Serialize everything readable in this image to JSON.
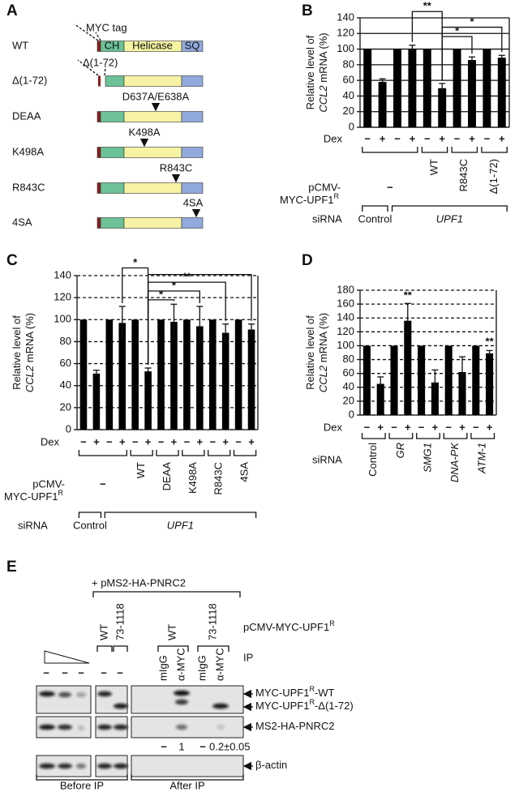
{
  "panel_a": {
    "label": "A",
    "myc_tag": "MYC tag",
    "domains": [
      "CH",
      "Helicase",
      "SQ"
    ],
    "rows": [
      {
        "name": "WT"
      },
      {
        "name": "Δ(1-72)",
        "note": "Δ(1-72)"
      },
      {
        "name": "DEAA",
        "mutation": "D637A/E638A"
      },
      {
        "name": "K498A",
        "mutation": "K498A"
      },
      {
        "name": "R843C",
        "mutation": "R843C"
      },
      {
        "name": "4SA",
        "mutation": "4SA"
      }
    ]
  },
  "chart_data": [
    {
      "type": "bar",
      "panel": "B",
      "y_label": {
        "line1": "Relative level of",
        "gene": "CCL2",
        "rest": " mRNA (%)"
      },
      "x_label": "Dex",
      "categories": [
        "−",
        "+",
        "−",
        "+",
        "−",
        "+",
        "−",
        "+",
        "−",
        "+"
      ],
      "values": [
        100,
        58,
        100,
        100,
        100,
        50,
        100,
        86,
        100,
        89
      ],
      "errors": [
        0,
        4,
        0,
        5,
        0,
        6,
        0,
        4,
        0,
        3
      ],
      "color": "#000000",
      "ylim": [
        0,
        140
      ],
      "yticks": [
        0,
        20,
        40,
        60,
        80,
        100,
        120,
        140
      ],
      "grid": true,
      "grid_style": "solid",
      "construct_label": {
        "line1": "pCMV-",
        "line2": "MYC-UPF1",
        "sup": "R"
      },
      "groups": [
        "−",
        "WT",
        "R843C",
        "Δ(1-72)"
      ],
      "sirna_label": "siRNA",
      "sirna_groups": [
        "Control",
        "UPF1"
      ],
      "sirna_italic": [
        false,
        true
      ],
      "annotations": [
        "**",
        "*",
        "*"
      ]
    },
    {
      "type": "bar",
      "panel": "C",
      "y_label": {
        "line1": "Relative level of",
        "gene": "CCL2",
        "rest": " mRNA (%)"
      },
      "x_label": "Dex",
      "categories": [
        "−",
        "+",
        "−",
        "+",
        "−",
        "+",
        "−",
        "+",
        "−",
        "+",
        "−",
        "+",
        "−",
        "+"
      ],
      "values": [
        100,
        51,
        100,
        97,
        100,
        53,
        100,
        98,
        100,
        94,
        100,
        88,
        100,
        91
      ],
      "errors": [
        0,
        3,
        0,
        15,
        0,
        3,
        0,
        16,
        0,
        18,
        0,
        8,
        0,
        5
      ],
      "color": "#000000",
      "ylim": [
        0,
        140
      ],
      "yticks": [
        0,
        20,
        40,
        60,
        80,
        100,
        120,
        140
      ],
      "grid": true,
      "grid_style": "dashed",
      "construct_label": {
        "line1": "pCMV-",
        "line2": "MYC-UPF1",
        "sup": "R"
      },
      "groups": [
        "−",
        "WT",
        "DEAA",
        "K498A",
        "R843C",
        "4SA"
      ],
      "sirna_label": "siRNA",
      "sirna_groups": [
        "Control",
        "UPF1"
      ],
      "sirna_italic": [
        false,
        true
      ],
      "annotations": [
        "*",
        "**",
        "*",
        "*"
      ]
    },
    {
      "type": "bar",
      "panel": "D",
      "y_label": {
        "line1": "Relative level of",
        "gene": "CCL2",
        "rest": " mRNA (%)"
      },
      "x_label": "Dex",
      "categories": [
        "−",
        "+",
        "−",
        "+",
        "−",
        "+",
        "−",
        "+",
        "−",
        "+"
      ],
      "values": [
        100,
        45,
        100,
        136,
        100,
        47,
        100,
        62,
        100,
        89
      ],
      "errors": [
        0,
        10,
        0,
        25,
        0,
        18,
        0,
        22,
        0,
        4
      ],
      "color": "#000000",
      "ylim": [
        0,
        180
      ],
      "yticks": [
        0,
        20,
        40,
        60,
        80,
        100,
        120,
        140,
        160,
        180
      ],
      "grid": true,
      "grid_style": "dashed",
      "sirna_label": "siRNA",
      "sirna_groups": [
        "Control",
        "GR",
        "SMG1",
        "DNA-PK",
        "ATM-1"
      ],
      "sirna_italic": [
        false,
        true,
        true,
        true,
        true
      ],
      "annotations": [
        "**",
        "**"
      ]
    }
  ],
  "panel_e": {
    "label": "E",
    "cotransfection": "+ pMS2-HA-PNRC2",
    "lanes": [
      "WT",
      "73-1118",
      "WT",
      "73-1118"
    ],
    "construct": {
      "text": "pCMV-MYC-UPF1",
      "sup": "R"
    },
    "ip_label": "IP",
    "ip_lanes": [
      "mIgG",
      "α-MYC",
      "mIgG",
      "α-MYC"
    ],
    "no_ip": [
      "−",
      "−",
      "−",
      "−",
      "−"
    ],
    "bands": [
      {
        "text": "MYC-UPF1",
        "sup": "R",
        "suffix": "-WT"
      },
      {
        "text": "MYC-UPF1",
        "sup": "R",
        "suffix": "-Δ(1-72)"
      },
      {
        "text": "MS2-HA-PNRC2"
      },
      {
        "text": "β-actin"
      }
    ],
    "quantification": [
      "−",
      "1",
      "−",
      "0.2±0.05"
    ],
    "sections": [
      "Before IP",
      "After IP"
    ]
  }
}
